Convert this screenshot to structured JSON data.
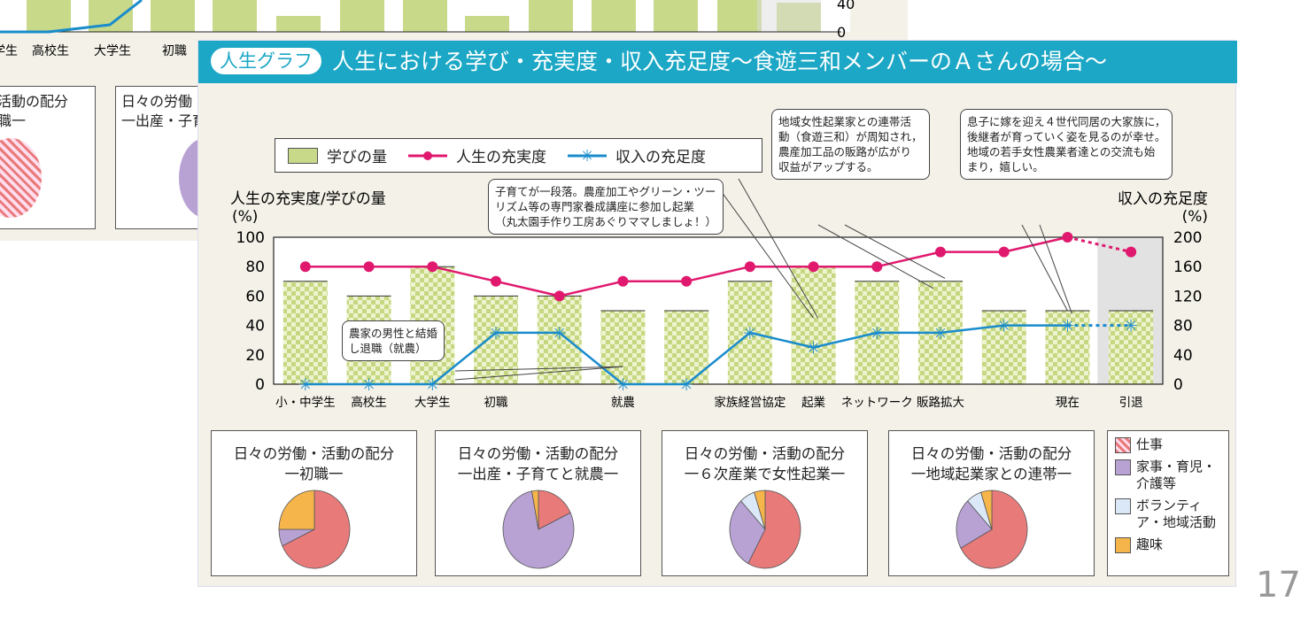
{
  "background_slide": {
    "x_labels": [
      "学生",
      "高校生",
      "大学生",
      "初職"
    ],
    "right_ticks": [
      "40",
      "0"
    ],
    "boxes": [
      {
        "title": "活動の配分",
        "sub": "職一"
      },
      {
        "title": "日々の労働",
        "sub": "一出産・子育"
      }
    ]
  },
  "header": {
    "tag": "人生グラフ",
    "title": "人生における学び・充実度・収入充足度～食遊三和メンバーのＡさんの場合～"
  },
  "legend": {
    "bars": "学びの量",
    "line1": "人生の充実度",
    "line2": "収入の充足度"
  },
  "callouts": {
    "a": [
      "地域女性起業家との連帯活",
      "動（食遊三和）が周知され，",
      "農産加工品の販路が広がり",
      "収益がアップする。"
    ],
    "b": [
      "息子に嫁を迎え４世代同居の大家族に，",
      "後継者が育っていく姿を見るのが幸せ。",
      "地域の若手女性農業者達との交流も始",
      "まり，嬉しい。"
    ],
    "c": [
      "子育てが一段落。農産加工やグリーン・ツー",
      "リズム等の専門家養成講座に参加し起業",
      "（丸太園手作り工房あぐりママしましょ！）"
    ],
    "d": [
      "農家の男性と結婚",
      "し退職（就農）"
    ]
  },
  "chart_data": {
    "type": "bar+line",
    "ylabel_left": "人生の充実度/学びの量",
    "yunit_left": "(%)",
    "ylabel_right": "収入の充足度",
    "yunit_right": "(%)",
    "ylim_left": [
      0,
      100
    ],
    "ylim_right": [
      0,
      200
    ],
    "yticks_left": [
      "0",
      "20",
      "40",
      "60",
      "80",
      "100"
    ],
    "yticks_right": [
      "0",
      "40",
      "80",
      "120",
      "160",
      "200"
    ],
    "categories": [
      "小・中学生",
      "高校生",
      "大学生",
      "初職",
      "",
      "就農",
      "",
      "家族経営協定",
      "起業",
      "ネットワーク",
      "販路拡大",
      "",
      "現在",
      "引退"
    ],
    "series": [
      {
        "name": "学びの量",
        "type": "bar",
        "axis": "left",
        "color": "#c8d98a",
        "values": [
          70,
          60,
          80,
          60,
          60,
          50,
          50,
          70,
          80,
          70,
          70,
          50,
          50,
          50
        ]
      },
      {
        "name": "人生の充実度",
        "type": "line",
        "axis": "left",
        "color": "#e0196e",
        "values": [
          80,
          80,
          80,
          70,
          60,
          70,
          70,
          80,
          80,
          80,
          90,
          90,
          100,
          90
        ],
        "dotted_from": "現在"
      },
      {
        "name": "収入の充足度",
        "type": "line",
        "axis": "right",
        "color": "#1a8ccc",
        "values": [
          0,
          0,
          0,
          70,
          70,
          0,
          0,
          70,
          50,
          70,
          70,
          80,
          80,
          80
        ],
        "dotted_from": "現在"
      }
    ],
    "shaded_region": "引退",
    "pies": [
      {
        "title": "日々の労働・活動の配分",
        "subtitle": "一初職一",
        "values": {
          "仕事": 68,
          "家事・育児・介護等": 7,
          "ボランティア・地域活動": 0,
          "趣味": 25
        }
      },
      {
        "title": "日々の労働・活動の配分",
        "subtitle": "一出産・子育てと就農一",
        "values": {
          "仕事": 18,
          "家事・育児・介護等": 79,
          "ボランティア・地域活動": 0,
          "趣味": 3
        }
      },
      {
        "title": "日々の労働・活動の配分",
        "subtitle": "一６次産業で女性起業一",
        "values": {
          "仕事": 58,
          "家事・育児・介護等": 30,
          "ボランティア・地域活動": 7,
          "趣味": 5
        }
      },
      {
        "title": "日々の労働・活動の配分",
        "subtitle": "一地域起業家との連帯一",
        "values": {
          "仕事": 67,
          "家事・育児・介護等": 21,
          "ボランティア・地域活動": 7,
          "趣味": 5
        }
      }
    ],
    "pie_legend": [
      {
        "label": "仕事",
        "color": "#e87a7a"
      },
      {
        "label": "家事・育児・介護等",
        "color": "#b8a2d4"
      },
      {
        "label": "ボランティア・地域活動",
        "color": "#8fb4e0"
      },
      {
        "label": "趣味",
        "color": "#f5b54a"
      }
    ]
  },
  "page_number": "17"
}
